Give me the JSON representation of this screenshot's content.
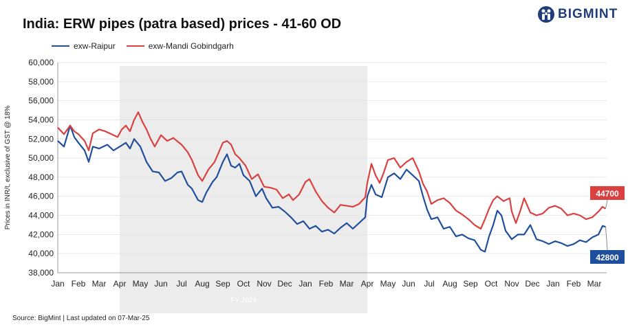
{
  "chart_data": {
    "type": "line",
    "title": "India: ERW pipes (patra based) prices - 41-60 OD",
    "xlabel": "",
    "ylabel": "Prices in INR/t, exclusive of GST @ 18%",
    "ylim": [
      38000,
      60000
    ],
    "yticks": [
      38000,
      40000,
      42000,
      44000,
      46000,
      48000,
      50000,
      52000,
      54000,
      56000,
      58000,
      60000
    ],
    "ytick_labels": [
      "38,000",
      "40,000",
      "42,000",
      "44,000",
      "46,000",
      "48,000",
      "50,000",
      "52,000",
      "54,000",
      "56,000",
      "58,000",
      "60,000"
    ],
    "x_labels": [
      "Jan",
      "Feb",
      "Mar",
      "Apr",
      "May",
      "Jun",
      "Jul",
      "Aug",
      "Sep",
      "Oct",
      "Nov",
      "Dec",
      "Jan",
      "Feb",
      "Mar",
      "Apr",
      "May",
      "Jun",
      "Jul",
      "Aug",
      "Sep",
      "Oct",
      "Nov",
      "Dec",
      "Jan",
      "Feb",
      "Mar"
    ],
    "x_range_months": [
      0,
      26.6
    ],
    "shaded_period": {
      "start_month": 3,
      "end_month": 15,
      "label": "FY 2024"
    },
    "series": [
      {
        "name": "exw-Raipur",
        "color": "#1f4e9c",
        "end_label": "42800",
        "points": [
          [
            0,
            51800
          ],
          [
            0.3,
            51200
          ],
          [
            0.6,
            53400
          ],
          [
            0.8,
            52200
          ],
          [
            1,
            51600
          ],
          [
            1.3,
            50800
          ],
          [
            1.5,
            49600
          ],
          [
            1.7,
            51200
          ],
          [
            2,
            51000
          ],
          [
            2.4,
            51400
          ],
          [
            2.7,
            50800
          ],
          [
            3,
            51200
          ],
          [
            3.3,
            51600
          ],
          [
            3.5,
            51000
          ],
          [
            3.7,
            52000
          ],
          [
            4,
            51200
          ],
          [
            4.3,
            49600
          ],
          [
            4.6,
            48600
          ],
          [
            4.9,
            48500
          ],
          [
            5.2,
            47600
          ],
          [
            5.5,
            47900
          ],
          [
            5.8,
            48500
          ],
          [
            6,
            48600
          ],
          [
            6.3,
            47200
          ],
          [
            6.5,
            46800
          ],
          [
            6.8,
            45600
          ],
          [
            7,
            45400
          ],
          [
            7.2,
            46400
          ],
          [
            7.5,
            47500
          ],
          [
            7.7,
            48000
          ],
          [
            8,
            49600
          ],
          [
            8.2,
            50400
          ],
          [
            8.4,
            49200
          ],
          [
            8.6,
            49000
          ],
          [
            8.8,
            49400
          ],
          [
            9,
            48200
          ],
          [
            9.3,
            47600
          ],
          [
            9.6,
            46000
          ],
          [
            9.9,
            46800
          ],
          [
            10.1,
            45800
          ],
          [
            10.4,
            44800
          ],
          [
            10.7,
            44900
          ],
          [
            11,
            44400
          ],
          [
            11.3,
            43800
          ],
          [
            11.6,
            43100
          ],
          [
            11.9,
            43400
          ],
          [
            12.2,
            42600
          ],
          [
            12.5,
            42900
          ],
          [
            12.8,
            42300
          ],
          [
            13.1,
            42500
          ],
          [
            13.4,
            42100
          ],
          [
            13.7,
            42700
          ],
          [
            14,
            43200
          ],
          [
            14.3,
            42600
          ],
          [
            14.6,
            43200
          ],
          [
            14.9,
            43800
          ],
          [
            15,
            46000
          ],
          [
            15.2,
            47200
          ],
          [
            15.4,
            46200
          ],
          [
            15.7,
            45900
          ],
          [
            16,
            48000
          ],
          [
            16.3,
            48400
          ],
          [
            16.6,
            47800
          ],
          [
            16.9,
            48800
          ],
          [
            17.2,
            48200
          ],
          [
            17.5,
            47600
          ],
          [
            17.7,
            46000
          ],
          [
            17.9,
            44600
          ],
          [
            18.1,
            43600
          ],
          [
            18.4,
            43800
          ],
          [
            18.7,
            42600
          ],
          [
            19,
            42800
          ],
          [
            19.3,
            41800
          ],
          [
            19.6,
            42000
          ],
          [
            19.9,
            41600
          ],
          [
            20.2,
            41400
          ],
          [
            20.5,
            40400
          ],
          [
            20.7,
            40200
          ],
          [
            20.9,
            41800
          ],
          [
            21.1,
            43000
          ],
          [
            21.3,
            44500
          ],
          [
            21.5,
            44000
          ],
          [
            21.7,
            42400
          ],
          [
            22,
            41500
          ],
          [
            22.3,
            42000
          ],
          [
            22.6,
            42000
          ],
          [
            22.9,
            43000
          ],
          [
            23.2,
            41500
          ],
          [
            23.5,
            41300
          ],
          [
            23.8,
            41000
          ],
          [
            24.1,
            41300
          ],
          [
            24.4,
            41100
          ],
          [
            24.7,
            40800
          ],
          [
            25,
            41000
          ],
          [
            25.3,
            41400
          ],
          [
            25.6,
            41200
          ],
          [
            25.9,
            41700
          ],
          [
            26.2,
            42000
          ],
          [
            26.4,
            42900
          ],
          [
            26.55,
            42800
          ]
        ]
      },
      {
        "name": "exw-Mandi Gobindgarh",
        "color": "#d94040",
        "end_label": "44700",
        "points": [
          [
            0,
            53200
          ],
          [
            0.3,
            52500
          ],
          [
            0.6,
            53400
          ],
          [
            0.8,
            52800
          ],
          [
            1,
            52500
          ],
          [
            1.3,
            51800
          ],
          [
            1.5,
            50800
          ],
          [
            1.7,
            52600
          ],
          [
            2,
            53000
          ],
          [
            2.3,
            52800
          ],
          [
            2.6,
            52500
          ],
          [
            2.9,
            52200
          ],
          [
            3.1,
            53000
          ],
          [
            3.3,
            53400
          ],
          [
            3.5,
            52800
          ],
          [
            3.7,
            54000
          ],
          [
            3.9,
            54800
          ],
          [
            4.1,
            53800
          ],
          [
            4.3,
            53000
          ],
          [
            4.5,
            52000
          ],
          [
            4.7,
            51200
          ],
          [
            5,
            52400
          ],
          [
            5.3,
            51800
          ],
          [
            5.6,
            52100
          ],
          [
            6,
            51400
          ],
          [
            6.3,
            50600
          ],
          [
            6.5,
            49800
          ],
          [
            6.8,
            48200
          ],
          [
            7,
            47600
          ],
          [
            7.3,
            48800
          ],
          [
            7.6,
            49600
          ],
          [
            8,
            51600
          ],
          [
            8.2,
            51800
          ],
          [
            8.4,
            51400
          ],
          [
            8.6,
            50400
          ],
          [
            8.8,
            50000
          ],
          [
            9.1,
            49200
          ],
          [
            9.4,
            47800
          ],
          [
            9.7,
            48300
          ],
          [
            10,
            47000
          ],
          [
            10.3,
            46900
          ],
          [
            10.6,
            46700
          ],
          [
            10.9,
            45800
          ],
          [
            11.2,
            46200
          ],
          [
            11.4,
            45600
          ],
          [
            11.7,
            46200
          ],
          [
            12,
            47500
          ],
          [
            12.2,
            47800
          ],
          [
            12.5,
            46500
          ],
          [
            12.8,
            45500
          ],
          [
            13.1,
            44800
          ],
          [
            13.4,
            44300
          ],
          [
            13.7,
            45100
          ],
          [
            14,
            45000
          ],
          [
            14.3,
            44900
          ],
          [
            14.6,
            45200
          ],
          [
            14.9,
            45900
          ],
          [
            15,
            47400
          ],
          [
            15.2,
            49400
          ],
          [
            15.4,
            48200
          ],
          [
            15.6,
            47400
          ],
          [
            15.8,
            48500
          ],
          [
            16,
            49800
          ],
          [
            16.3,
            50000
          ],
          [
            16.6,
            49000
          ],
          [
            16.9,
            49600
          ],
          [
            17.2,
            50000
          ],
          [
            17.5,
            48600
          ],
          [
            17.7,
            47300
          ],
          [
            17.9,
            46500
          ],
          [
            18.1,
            45200
          ],
          [
            18.4,
            45600
          ],
          [
            18.7,
            45800
          ],
          [
            19,
            45300
          ],
          [
            19.3,
            44500
          ],
          [
            19.6,
            44100
          ],
          [
            19.9,
            43600
          ],
          [
            20.2,
            43000
          ],
          [
            20.5,
            42600
          ],
          [
            20.7,
            43600
          ],
          [
            20.9,
            44700
          ],
          [
            21.1,
            45600
          ],
          [
            21.3,
            46000
          ],
          [
            21.6,
            45500
          ],
          [
            21.9,
            45800
          ],
          [
            22,
            44400
          ],
          [
            22.2,
            43200
          ],
          [
            22.4,
            44400
          ],
          [
            22.6,
            45800
          ],
          [
            22.9,
            44300
          ],
          [
            23.2,
            44000
          ],
          [
            23.5,
            44200
          ],
          [
            23.8,
            44800
          ],
          [
            24.1,
            45000
          ],
          [
            24.4,
            44700
          ],
          [
            24.7,
            44000
          ],
          [
            25,
            44200
          ],
          [
            25.3,
            44000
          ],
          [
            25.6,
            43600
          ],
          [
            25.9,
            43800
          ],
          [
            26.2,
            44400
          ],
          [
            26.4,
            44900
          ],
          [
            26.55,
            44700
          ]
        ]
      }
    ]
  },
  "legend": {
    "items": [
      {
        "label": "exw-Raipur",
        "color": "#1f4e9c"
      },
      {
        "label": "exw-Mandi Gobindgarh",
        "color": "#d94040"
      }
    ]
  },
  "logo": {
    "text": "BIGMINT",
    "color": "#1f3d7a"
  },
  "footer": {
    "source": "Source: BigMint  | Last updated on 07-Mar-25"
  }
}
